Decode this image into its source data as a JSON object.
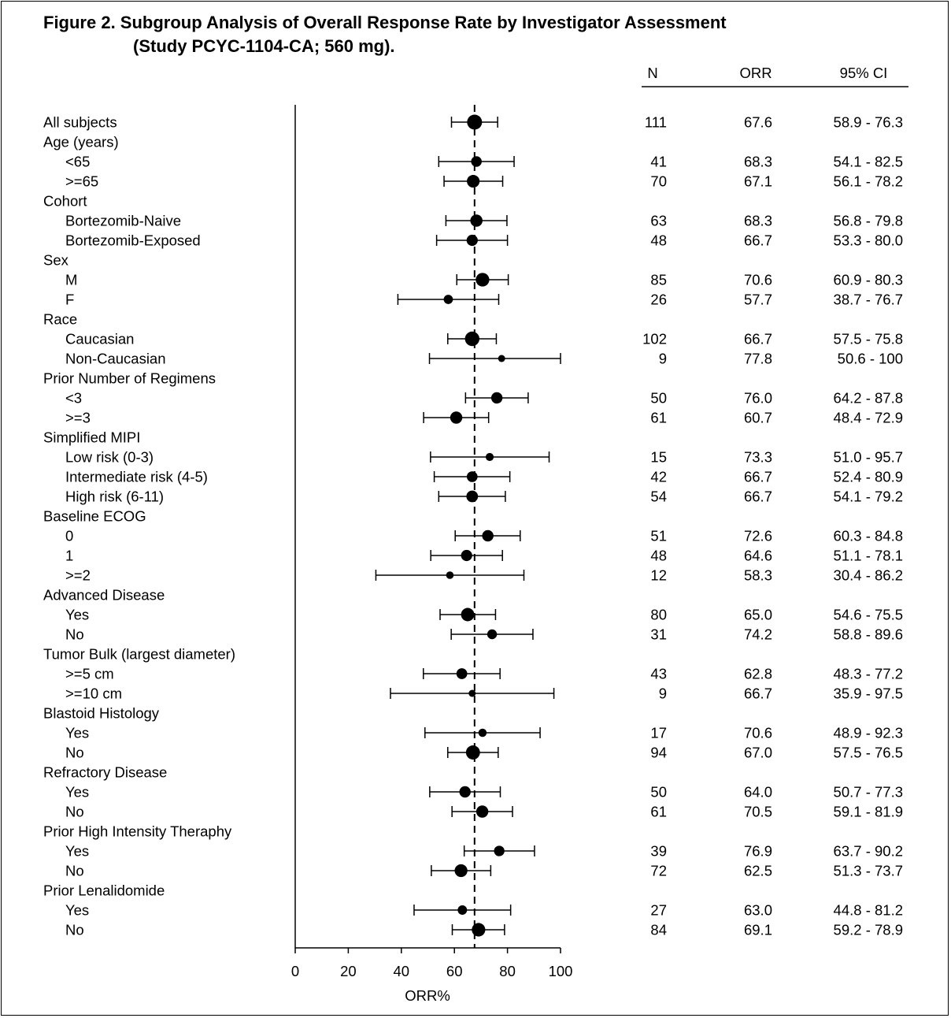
{
  "title_line1": "Figure 2. Subgroup Analysis of Overall Response Rate by Investigator Assessment",
  "title_line2": "(Study PCYC-1104-CA; 560 mg).",
  "columns": {
    "n": "N",
    "orr": "ORR",
    "ci": "95% CI"
  },
  "chart_data": {
    "type": "forest",
    "xlabel": "ORR%",
    "xlim": [
      0,
      100
    ],
    "xticks": [
      0,
      20,
      40,
      60,
      80,
      100
    ],
    "reference_line": 67.6,
    "rows": [
      {
        "label": "All subjects",
        "level": 0,
        "n": "111",
        "orr_text": "67.6",
        "ci_text": "58.9 - 76.3",
        "orr": 67.6,
        "lo": 58.9,
        "hi": 76.3
      },
      {
        "label": "Age (years)",
        "level": 0
      },
      {
        "label": "<65",
        "level": 1,
        "n": "41",
        "orr_text": "68.3",
        "ci_text": "54.1 - 82.5",
        "orr": 68.3,
        "lo": 54.1,
        "hi": 82.5
      },
      {
        "label": ">=65",
        "level": 1,
        "n": "70",
        "orr_text": "67.1",
        "ci_text": "56.1 - 78.2",
        "orr": 67.1,
        "lo": 56.1,
        "hi": 78.2
      },
      {
        "label": "Cohort",
        "level": 0
      },
      {
        "label": "Bortezomib-Naive",
        "level": 1,
        "n": "63",
        "orr_text": "68.3",
        "ci_text": "56.8 - 79.8",
        "orr": 68.3,
        "lo": 56.8,
        "hi": 79.8
      },
      {
        "label": "Bortezomib-Exposed",
        "level": 1,
        "n": "48",
        "orr_text": "66.7",
        "ci_text": "53.3 - 80.0",
        "orr": 66.7,
        "lo": 53.3,
        "hi": 80.0
      },
      {
        "label": "Sex",
        "level": 0
      },
      {
        "label": "M",
        "level": 1,
        "n": "85",
        "orr_text": "70.6",
        "ci_text": "60.9 - 80.3",
        "orr": 70.6,
        "lo": 60.9,
        "hi": 80.3
      },
      {
        "label": "F",
        "level": 1,
        "n": "26",
        "orr_text": "57.7",
        "ci_text": "38.7 - 76.7",
        "orr": 57.7,
        "lo": 38.7,
        "hi": 76.7
      },
      {
        "label": "Race",
        "level": 0
      },
      {
        "label": "Caucasian",
        "level": 1,
        "n": "102",
        "orr_text": "66.7",
        "ci_text": "57.5 - 75.8",
        "orr": 66.7,
        "lo": 57.5,
        "hi": 75.8
      },
      {
        "label": "Non-Caucasian",
        "level": 1,
        "n": "9",
        "orr_text": "77.8",
        "ci_text": "50.6 - 100",
        "orr": 77.8,
        "lo": 50.6,
        "hi": 100
      },
      {
        "label": "Prior Number of Regimens",
        "level": 0
      },
      {
        "label": "<3",
        "level": 1,
        "n": "50",
        "orr_text": "76.0",
        "ci_text": "64.2 - 87.8",
        "orr": 76.0,
        "lo": 64.2,
        "hi": 87.8
      },
      {
        "label": ">=3",
        "level": 1,
        "n": "61",
        "orr_text": "60.7",
        "ci_text": "48.4 - 72.9",
        "orr": 60.7,
        "lo": 48.4,
        "hi": 72.9
      },
      {
        "label": "Simplified MIPI",
        "level": 0
      },
      {
        "label": "Low risk (0-3)",
        "level": 1,
        "n": "15",
        "orr_text": "73.3",
        "ci_text": "51.0 - 95.7",
        "orr": 73.3,
        "lo": 51.0,
        "hi": 95.7
      },
      {
        "label": "Intermediate risk (4-5)",
        "level": 1,
        "n": "42",
        "orr_text": "66.7",
        "ci_text": "52.4 - 80.9",
        "orr": 66.7,
        "lo": 52.4,
        "hi": 80.9
      },
      {
        "label": "High risk (6-11)",
        "level": 1,
        "n": "54",
        "orr_text": "66.7",
        "ci_text": "54.1 - 79.2",
        "orr": 66.7,
        "lo": 54.1,
        "hi": 79.2
      },
      {
        "label": "Baseline ECOG",
        "level": 0
      },
      {
        "label": "0",
        "level": 1,
        "n": "51",
        "orr_text": "72.6",
        "ci_text": "60.3 - 84.8",
        "orr": 72.6,
        "lo": 60.3,
        "hi": 84.8
      },
      {
        "label": "1",
        "level": 1,
        "n": "48",
        "orr_text": "64.6",
        "ci_text": "51.1 - 78.1",
        "orr": 64.6,
        "lo": 51.1,
        "hi": 78.1
      },
      {
        "label": ">=2",
        "level": 1,
        "n": "12",
        "orr_text": "58.3",
        "ci_text": "30.4 - 86.2",
        "orr": 58.3,
        "lo": 30.4,
        "hi": 86.2
      },
      {
        "label": "Advanced Disease",
        "level": 0
      },
      {
        "label": "Yes",
        "level": 1,
        "n": "80",
        "orr_text": "65.0",
        "ci_text": "54.6 - 75.5",
        "orr": 65.0,
        "lo": 54.6,
        "hi": 75.5
      },
      {
        "label": "No",
        "level": 1,
        "n": "31",
        "orr_text": "74.2",
        "ci_text": "58.8 - 89.6",
        "orr": 74.2,
        "lo": 58.8,
        "hi": 89.6
      },
      {
        "label": "Tumor Bulk (largest diameter)",
        "level": 0
      },
      {
        "label": ">=5 cm",
        "level": 1,
        "n": "43",
        "orr_text": "62.8",
        "ci_text": "48.3 - 77.2",
        "orr": 62.8,
        "lo": 48.3,
        "hi": 77.2
      },
      {
        "label": ">=10 cm",
        "level": 1,
        "n": "9",
        "orr_text": "66.7",
        "ci_text": "35.9 - 97.5",
        "orr": 66.7,
        "lo": 35.9,
        "hi": 97.5
      },
      {
        "label": "Blastoid Histology",
        "level": 0
      },
      {
        "label": "Yes",
        "level": 1,
        "n": "17",
        "orr_text": "70.6",
        "ci_text": "48.9 - 92.3",
        "orr": 70.6,
        "lo": 48.9,
        "hi": 92.3
      },
      {
        "label": "No",
        "level": 1,
        "n": "94",
        "orr_text": "67.0",
        "ci_text": "57.5 - 76.5",
        "orr": 67.0,
        "lo": 57.5,
        "hi": 76.5
      },
      {
        "label": "Refractory Disease",
        "level": 0
      },
      {
        "label": "Yes",
        "level": 1,
        "n": "50",
        "orr_text": "64.0",
        "ci_text": "50.7 - 77.3",
        "orr": 64.0,
        "lo": 50.7,
        "hi": 77.3
      },
      {
        "label": "No",
        "level": 1,
        "n": "61",
        "orr_text": "70.5",
        "ci_text": "59.1 - 81.9",
        "orr": 70.5,
        "lo": 59.1,
        "hi": 81.9
      },
      {
        "label": "Prior High Intensity Theraphy",
        "level": 0
      },
      {
        "label": "Yes",
        "level": 1,
        "n": "39",
        "orr_text": "76.9",
        "ci_text": "63.7 - 90.2",
        "orr": 76.9,
        "lo": 63.7,
        "hi": 90.2
      },
      {
        "label": "No",
        "level": 1,
        "n": "72",
        "orr_text": "62.5",
        "ci_text": "51.3 - 73.7",
        "orr": 62.5,
        "lo": 51.3,
        "hi": 73.7
      },
      {
        "label": "Prior Lenalidomide",
        "level": 0
      },
      {
        "label": "Yes",
        "level": 1,
        "n": "27",
        "orr_text": "63.0",
        "ci_text": "44.8 - 81.2",
        "orr": 63.0,
        "lo": 44.8,
        "hi": 81.2
      },
      {
        "label": "No",
        "level": 1,
        "n": "84",
        "orr_text": "69.1",
        "ci_text": "59.2 - 78.9",
        "orr": 69.1,
        "lo": 59.2,
        "hi": 78.9
      }
    ]
  }
}
